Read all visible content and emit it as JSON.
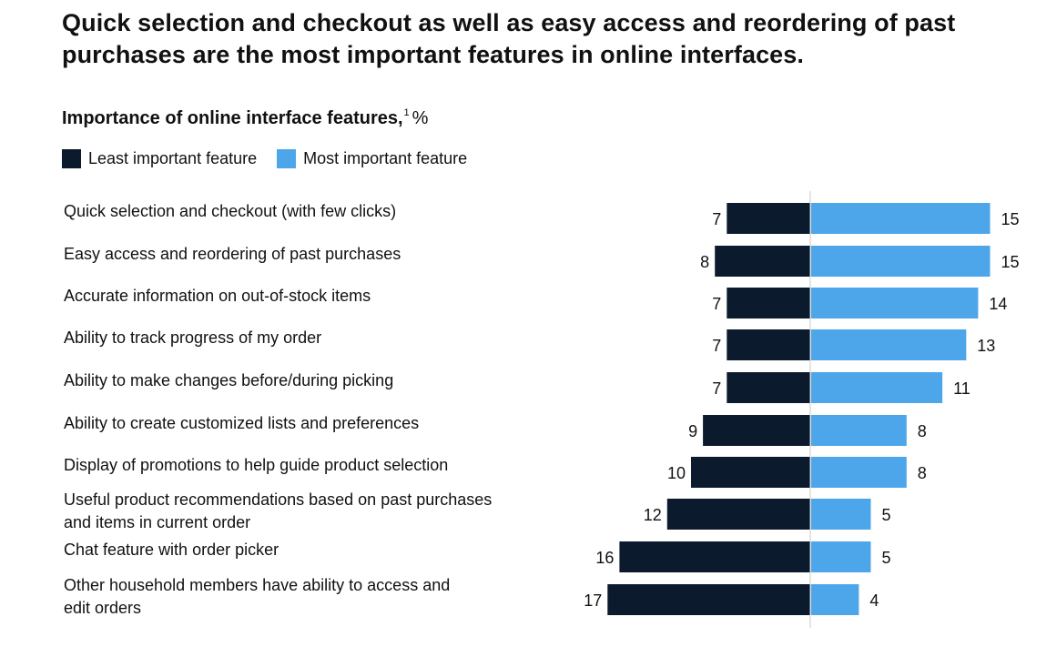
{
  "title": "Quick selection and checkout as well as easy access and reordering of past purchases are the most important features in online interfaces.",
  "subtitle": "Importance of online interface features,",
  "subtitle_footnote": "1",
  "subtitle_unit": "%",
  "colors": {
    "least": "#0b1b2d",
    "most": "#4ea6ea",
    "axis": "#c8c8c8"
  },
  "chart_data": {
    "type": "bar",
    "orientation": "horizontal-diverging",
    "categories": [
      [
        "Quick selection and checkout (with few clicks)"
      ],
      [
        "Easy access and reordering of past purchases"
      ],
      [
        "Accurate information on out-of-stock items"
      ],
      [
        "Ability to track progress of my order"
      ],
      [
        "Ability to make changes before/during picking"
      ],
      [
        "Ability to create customized lists and preferences"
      ],
      [
        "Display of promotions to help guide product selection"
      ],
      [
        "Useful product recommendations based on past purchases",
        "and items in current order"
      ],
      [
        "Chat feature with order picker"
      ],
      [
        "Other household members have ability to access and",
        "edit orders"
      ]
    ],
    "series": [
      {
        "name": "Least important feature",
        "values": [
          7,
          8,
          7,
          7,
          7,
          9,
          10,
          12,
          16,
          17
        ]
      },
      {
        "name": "Most important feature",
        "values": [
          15,
          15,
          14,
          13,
          11,
          8,
          8,
          5,
          5,
          4
        ]
      }
    ],
    "legend": "top-left",
    "grid": false
  }
}
